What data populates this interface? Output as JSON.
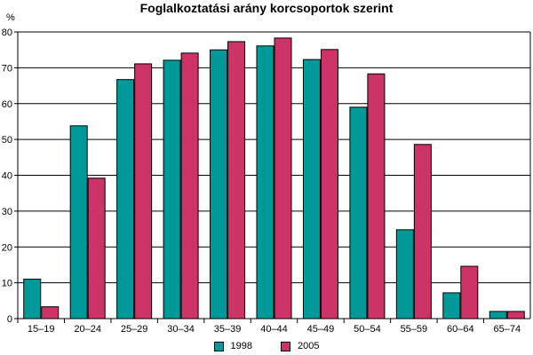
{
  "chart_data": {
    "type": "bar",
    "title": "Foglalkoztatási arány korcsoportok szerint",
    "ylabel": "%",
    "xlabel": "",
    "ylim": [
      0,
      80
    ],
    "yticks": [
      0,
      10,
      20,
      30,
      40,
      50,
      60,
      70,
      80
    ],
    "categories": [
      "15–19",
      "20–24",
      "25–29",
      "30–34",
      "35–39",
      "40–44",
      "45–49",
      "50–54",
      "55–59",
      "60–64",
      "65–74"
    ],
    "series": [
      {
        "name": "1998",
        "color": "#009999",
        "values": [
          11,
          53.8,
          66.7,
          72.1,
          75,
          76.1,
          72.3,
          59,
          24.8,
          7.2,
          2
        ]
      },
      {
        "name": "2005",
        "color": "#cc3366",
        "values": [
          3.3,
          39.2,
          71.1,
          74.1,
          77.3,
          78.3,
          75.1,
          68.3,
          48.6,
          14.6,
          2
        ]
      }
    ],
    "legend_position": "bottom-center",
    "grid": "horizontal"
  }
}
